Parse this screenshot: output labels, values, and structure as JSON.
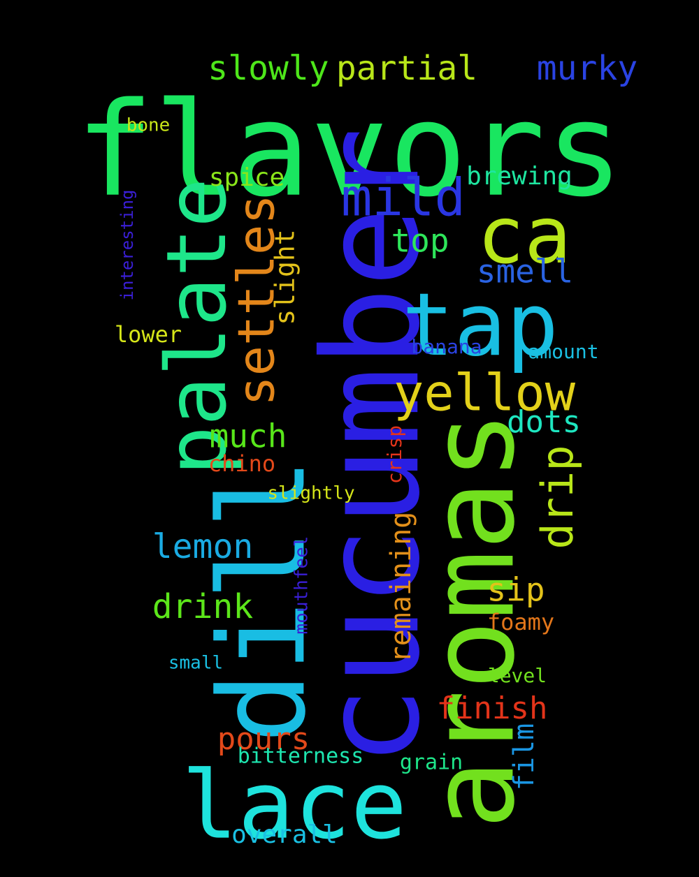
{
  "background": "#000000",
  "words": [
    {
      "text": "flavors",
      "color": "#19e660"
    },
    {
      "text": "cucumber",
      "color": "#2a1fe3"
    },
    {
      "text": "aromas",
      "color": "#72e01e"
    },
    {
      "text": "dill",
      "color": "#19bde3"
    },
    {
      "text": "palate",
      "color": "#1ee68a"
    },
    {
      "text": "lace",
      "color": "#1ee3dd"
    },
    {
      "text": "tap",
      "color": "#19bfe3"
    },
    {
      "text": "ca",
      "color": "#b8e619"
    },
    {
      "text": "yellow",
      "color": "#e3d11a"
    },
    {
      "text": "mild",
      "color": "#2a36e3"
    },
    {
      "text": "settles",
      "color": "#e3861a"
    },
    {
      "text": "drip",
      "color": "#b8e619"
    },
    {
      "text": "slowly",
      "color": "#4ee61a"
    },
    {
      "text": "partial",
      "color": "#b8e619"
    },
    {
      "text": "murky",
      "color": "#2a43e3"
    },
    {
      "text": "smell",
      "color": "#2a63e3"
    },
    {
      "text": "top",
      "color": "#2ee65a"
    },
    {
      "text": "brewing",
      "color": "#1ee6a0"
    },
    {
      "text": "spice",
      "color": "#8ae61a"
    },
    {
      "text": "slight",
      "color": "#e3c21a"
    },
    {
      "text": "much",
      "color": "#58e61a"
    },
    {
      "text": "dots",
      "color": "#1ee6c0"
    },
    {
      "text": "lemon",
      "color": "#1aabe3"
    },
    {
      "text": "drink",
      "color": "#5ce61a"
    },
    {
      "text": "sip",
      "color": "#e3c21a"
    },
    {
      "text": "finish",
      "color": "#e3341a"
    },
    {
      "text": "pours",
      "color": "#e3491a"
    },
    {
      "text": "remaining",
      "color": "#e3901a"
    },
    {
      "text": "film",
      "color": "#1a96e3"
    },
    {
      "text": "overall",
      "color": "#1ac0e3"
    },
    {
      "text": "bitterness",
      "color": "#1ee6b0"
    },
    {
      "text": "grain",
      "color": "#1ee68a"
    },
    {
      "text": "foamy",
      "color": "#e3761a"
    },
    {
      "text": "chino",
      "color": "#e3491a"
    },
    {
      "text": "crisp",
      "color": "#e3341a"
    },
    {
      "text": "lower",
      "color": "#d6e619"
    },
    {
      "text": "banana",
      "color": "#2a43e3"
    },
    {
      "text": "amount",
      "color": "#1ac0e3"
    },
    {
      "text": "interesting",
      "color": "#3a1fd6"
    },
    {
      "text": "mouthfeel",
      "color": "#3a1fd6"
    },
    {
      "text": "slightly",
      "color": "#d6e619"
    },
    {
      "text": "level",
      "color": "#72e01e"
    },
    {
      "text": "small",
      "color": "#1ac0e3"
    },
    {
      "text": "bone",
      "color": "#c8e619"
    }
  ]
}
